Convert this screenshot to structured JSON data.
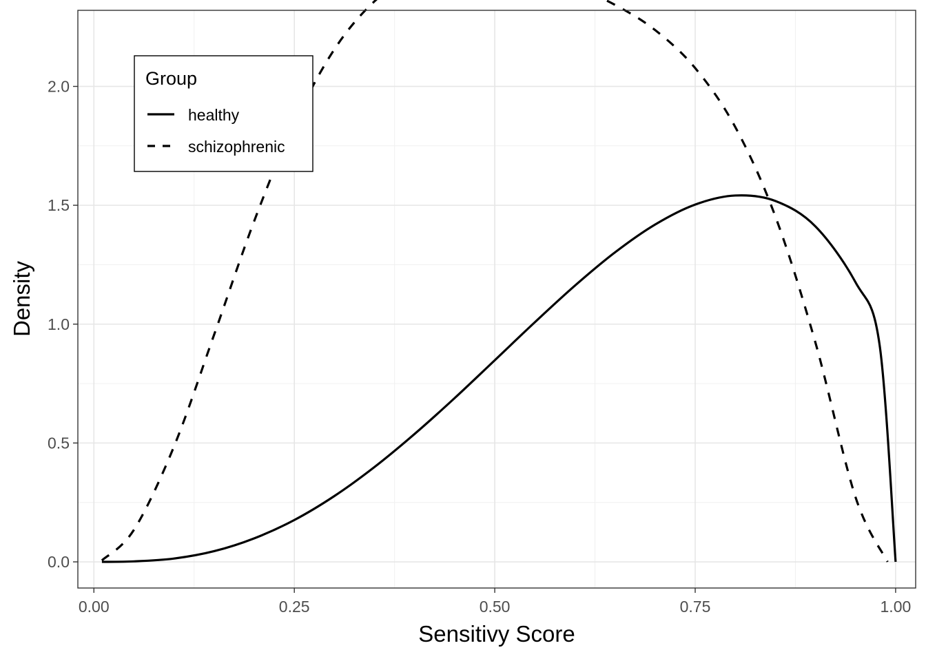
{
  "chart_data": {
    "type": "line",
    "title": "",
    "xlabel": "Sensitivy Score",
    "ylabel": "Density",
    "xlim": [
      -0.02,
      1.025
    ],
    "ylim": [
      -0.11,
      2.32
    ],
    "grid": true,
    "x_ticks": [
      {
        "value": 0.0,
        "label": "0.00"
      },
      {
        "value": 0.25,
        "label": "0.25"
      },
      {
        "value": 0.5,
        "label": "0.50"
      },
      {
        "value": 0.75,
        "label": "0.75"
      },
      {
        "value": 1.0,
        "label": "1.00"
      }
    ],
    "y_ticks": [
      {
        "value": 0.0,
        "label": "0.0"
      },
      {
        "value": 0.5,
        "label": "0.5"
      },
      {
        "value": 1.0,
        "label": "1.0"
      },
      {
        "value": 1.5,
        "label": "1.5"
      },
      {
        "value": 2.0,
        "label": "2.0"
      }
    ],
    "legend": {
      "title": "Group",
      "placement": "top-left",
      "entries": [
        "healthy",
        "schizophrenic"
      ]
    },
    "series": [
      {
        "name": "healthy",
        "linestyle": "solid",
        "color": "#000000",
        "x": [
          0.01,
          0.05,
          0.1,
          0.15,
          0.2,
          0.25,
          0.3,
          0.35,
          0.4,
          0.45,
          0.5,
          0.55,
          0.6,
          0.65,
          0.7,
          0.75,
          0.8,
          0.85,
          0.9,
          0.95,
          0.98,
          1.0
        ],
        "y": [
          0.0,
          0.002,
          0.014,
          0.045,
          0.099,
          0.176,
          0.277,
          0.399,
          0.538,
          0.689,
          0.848,
          1.008,
          1.162,
          1.302,
          1.419,
          1.503,
          1.541,
          1.518,
          1.411,
          1.176,
          0.913,
          0.0
        ]
      },
      {
        "name": "schizophrenic",
        "linestyle": "dashed",
        "color": "#000000",
        "x": [
          0.01,
          0.05,
          0.1,
          0.15,
          0.2,
          0.25,
          0.3,
          0.35,
          0.4,
          0.45,
          0.5,
          0.55,
          0.6,
          0.65,
          0.7,
          0.75,
          0.8,
          0.85,
          0.9,
          0.95,
          0.99
        ],
        "y": [
          0.006,
          0.135,
          0.486,
          0.956,
          1.434,
          1.845,
          2.156,
          2.358,
          2.471,
          2.514,
          2.509,
          2.474,
          2.418,
          2.343,
          2.237,
          2.077,
          1.829,
          1.453,
          0.922,
          0.272,
          0.0
        ]
      }
    ]
  }
}
